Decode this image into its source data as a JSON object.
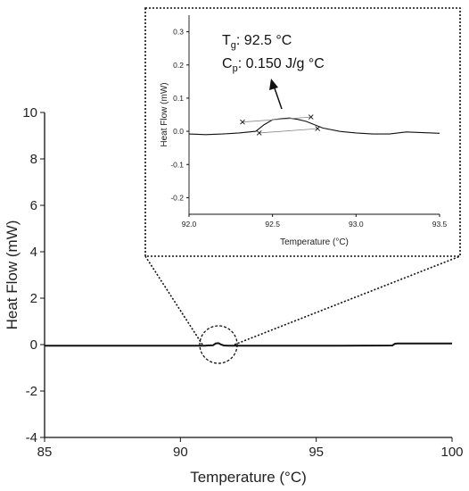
{
  "chart_data": [
    {
      "type": "line",
      "title": "",
      "xlabel": "Temperature (°C)",
      "ylabel": "Heat Flow (mW)",
      "xlim": [
        85,
        100
      ],
      "ylim": [
        -4,
        10
      ],
      "x_ticks": [
        85,
        90,
        95,
        100
      ],
      "x_tick_labels": [
        "85",
        "90",
        "95",
        "100"
      ],
      "y_ticks": [
        -4,
        -2,
        0,
        2,
        4,
        6,
        8,
        10
      ],
      "y_tick_labels": [
        "-4",
        "-2",
        "0",
        "2",
        "4",
        "6",
        "8",
        "10"
      ],
      "grid": false,
      "series": [
        {
          "x": [
            85,
            90.9,
            91.0,
            91.2,
            91.3,
            91.4,
            91.5,
            91.6,
            91.8,
            92.5,
            95,
            97.8,
            97.9,
            98.0,
            100
          ],
          "y": [
            -0.05,
            -0.05,
            -0.04,
            -0.03,
            0.05,
            0.06,
            0.0,
            -0.04,
            -0.05,
            -0.05,
            -0.05,
            -0.04,
            0.04,
            0.05,
            0.05
          ]
        }
      ],
      "zoom_region": {
        "x": 91.4,
        "y": 0.0,
        "note": "circled region magnified in inset"
      }
    },
    {
      "type": "line",
      "title": "",
      "xlabel": "Temperature (°C)",
      "ylabel": "Heat Flow (mW)",
      "xlim": [
        92.0,
        93.5
      ],
      "ylim": [
        -0.25,
        0.35
      ],
      "x_ticks": [
        92.0,
        92.5,
        93.0,
        93.5
      ],
      "x_tick_labels": [
        "92.0",
        "92.5",
        "93.0",
        "93.5"
      ],
      "y_ticks": [
        -0.2,
        -0.1,
        0.0,
        0.1,
        0.2,
        0.3
      ],
      "y_tick_labels": [
        "-0.2",
        "-0.1",
        "0.0",
        "0.1",
        "0.2",
        "0.3"
      ],
      "grid": false,
      "series": [
        {
          "x": [
            92.0,
            92.1,
            92.2,
            92.3,
            92.4,
            92.45,
            92.5,
            92.55,
            92.6,
            92.65,
            92.7,
            92.8,
            92.9,
            93.0,
            93.1,
            93.2,
            93.3,
            93.4,
            93.5
          ],
          "y": [
            -0.008,
            -0.01,
            -0.008,
            -0.005,
            0.0,
            0.02,
            0.035,
            0.038,
            0.04,
            0.036,
            0.03,
            0.01,
            0.0,
            -0.005,
            -0.008,
            -0.008,
            -0.002,
            -0.004,
            -0.006
          ]
        }
      ],
      "markers": [
        {
          "x": 92.32,
          "y": 0.028
        },
        {
          "x": 92.42,
          "y": -0.005
        },
        {
          "x": 92.73,
          "y": 0.043
        },
        {
          "x": 92.77,
          "y": 0.008
        }
      ],
      "tangent_lines": [
        {
          "x": [
            92.32,
            92.73
          ],
          "y": [
            0.028,
            0.043
          ]
        },
        {
          "x": [
            92.42,
            92.77
          ],
          "y": [
            -0.005,
            0.008
          ]
        }
      ],
      "annotation": {
        "tg_symbol": "T",
        "tg_subscript": "g",
        "tg_value": ": 92.5 °C",
        "cp_symbol": "C",
        "cp_subscript": "p",
        "cp_value": ": 0.150 J/g °C",
        "arrow": true
      }
    }
  ]
}
